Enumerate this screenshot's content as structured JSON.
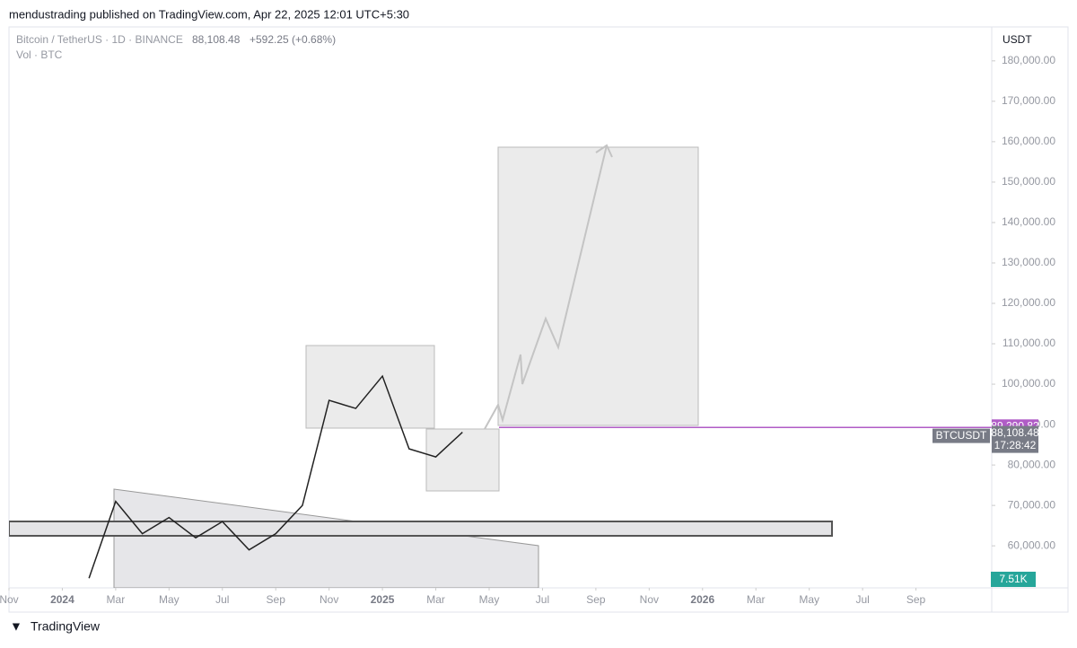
{
  "header": {
    "text": "mendustrading published on TradingView.com, Apr 22, 2025 12:01 UTC+5:30"
  },
  "chart_data": {
    "type": "line",
    "symbol": "Bitcoin / TetherUS · 1D · BINANCE",
    "last_price": "88,108.48",
    "change": "+592.25 (+0.68%)",
    "volume_label": "Vol · BTC",
    "currency": "USDT",
    "x": [
      "2024-02",
      "2024-03",
      "2024-04",
      "2024-05",
      "2024-06",
      "2024-07",
      "2024-08",
      "2024-09",
      "2024-10",
      "2024-11",
      "2024-12",
      "2025-01",
      "2025-02",
      "2025-03",
      "2025-04"
    ],
    "series": [
      {
        "color": "#222222",
        "values": [
          52000,
          71000,
          63000,
          67000,
          62000,
          66000,
          59000,
          63000,
          70000,
          96000,
          94000,
          102000,
          84000,
          82000,
          88108.48
        ]
      }
    ],
    "xlim": [
      "2023-11",
      "2026-11"
    ],
    "xticks": [
      {
        "value": "2023-11",
        "label": "Nov"
      },
      {
        "value": "2024-01",
        "label": "2024"
      },
      {
        "value": "2024-03",
        "label": "Mar"
      },
      {
        "value": "2024-05",
        "label": "May"
      },
      {
        "value": "2024-07",
        "label": "Jul"
      },
      {
        "value": "2024-09",
        "label": "Sep"
      },
      {
        "value": "2024-11",
        "label": "Nov"
      },
      {
        "value": "2025-01",
        "label": "2025"
      },
      {
        "value": "2025-03",
        "label": "Mar"
      },
      {
        "value": "2025-05",
        "label": "May"
      },
      {
        "value": "2025-07",
        "label": "Jul"
      },
      {
        "value": "2025-09",
        "label": "Sep"
      },
      {
        "value": "2025-11",
        "label": "Nov"
      },
      {
        "value": "2026-01",
        "label": "2026"
      },
      {
        "value": "2026-03",
        "label": "Mar"
      },
      {
        "value": "2026-05",
        "label": "May"
      },
      {
        "value": "2026-07",
        "label": "Jul"
      },
      {
        "value": "2026-09",
        "label": "Sep"
      }
    ],
    "ylim": [
      49600,
      188400
    ],
    "yticks": [
      {
        "value": 60000,
        "label": "60,000.00"
      },
      {
        "value": 70000,
        "label": "70,000.00"
      },
      {
        "value": 80000,
        "label": "80,000.00"
      },
      {
        "value": 90000,
        "label": "90,000.00"
      },
      {
        "value": 100000,
        "label": "100,000.00"
      },
      {
        "value": 110000,
        "label": "110,000.00"
      },
      {
        "value": 120000,
        "label": "120,000.00"
      },
      {
        "value": 130000,
        "label": "130,000.00"
      },
      {
        "value": 140000,
        "label": "140,000.00"
      },
      {
        "value": 150000,
        "label": "150,000.00"
      },
      {
        "value": 160000,
        "label": "160,000.00"
      },
      {
        "value": 170000,
        "label": "170,000.00"
      },
      {
        "value": 180000,
        "label": "180,000.00"
      }
    ],
    "level": {
      "value": 89290.82,
      "label": "89,290.82",
      "color": "#b05cc6"
    },
    "last_label": {
      "symbol": "BTCUSDT",
      "countdown": "17:28:42"
    },
    "volume_last": "7.51K"
  },
  "footer": {
    "brand": "TradingView"
  }
}
